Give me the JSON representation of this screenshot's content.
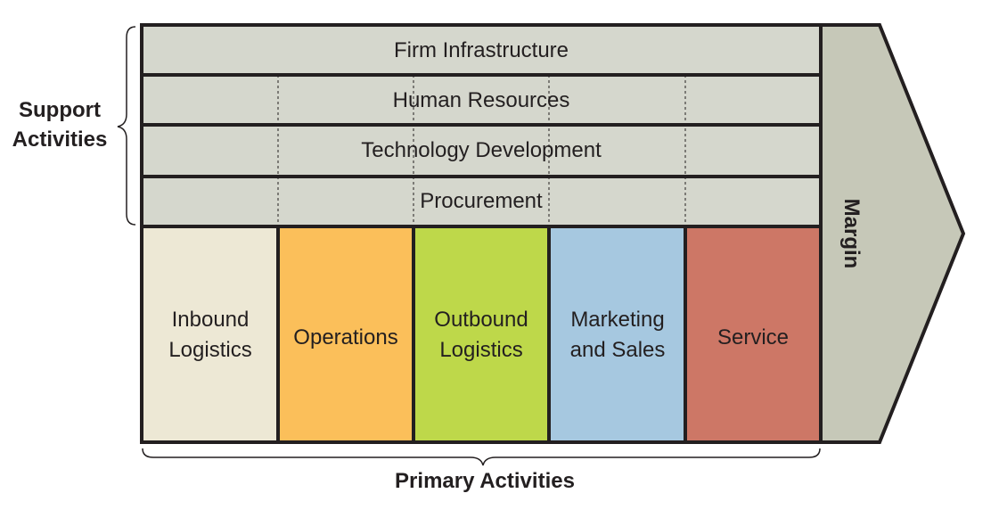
{
  "support": {
    "label_line1": "Support",
    "label_line2": "Activities",
    "rows": [
      "Firm Infrastructure",
      "Human Resources",
      "Technology Development",
      "Procurement"
    ]
  },
  "primary": {
    "label": "Primary Activities",
    "activities": [
      {
        "line1": "Inbound",
        "line2": "Logistics",
        "color": "#ede8d5"
      },
      {
        "line1": "Operations",
        "line2": "",
        "color": "#fbbf5a"
      },
      {
        "line1": "Outbound",
        "line2": "Logistics",
        "color": "#bed84a"
      },
      {
        "line1": "Marketing",
        "line2": "and Sales",
        "color": "#a6c8e0"
      },
      {
        "line1": "Service",
        "line2": "",
        "color": "#cd7766"
      }
    ]
  },
  "margin": {
    "label": "Margin",
    "color": "#c6c8b8"
  },
  "colors": {
    "support_fill": "#d5d7cd",
    "stroke": "#231f20"
  }
}
